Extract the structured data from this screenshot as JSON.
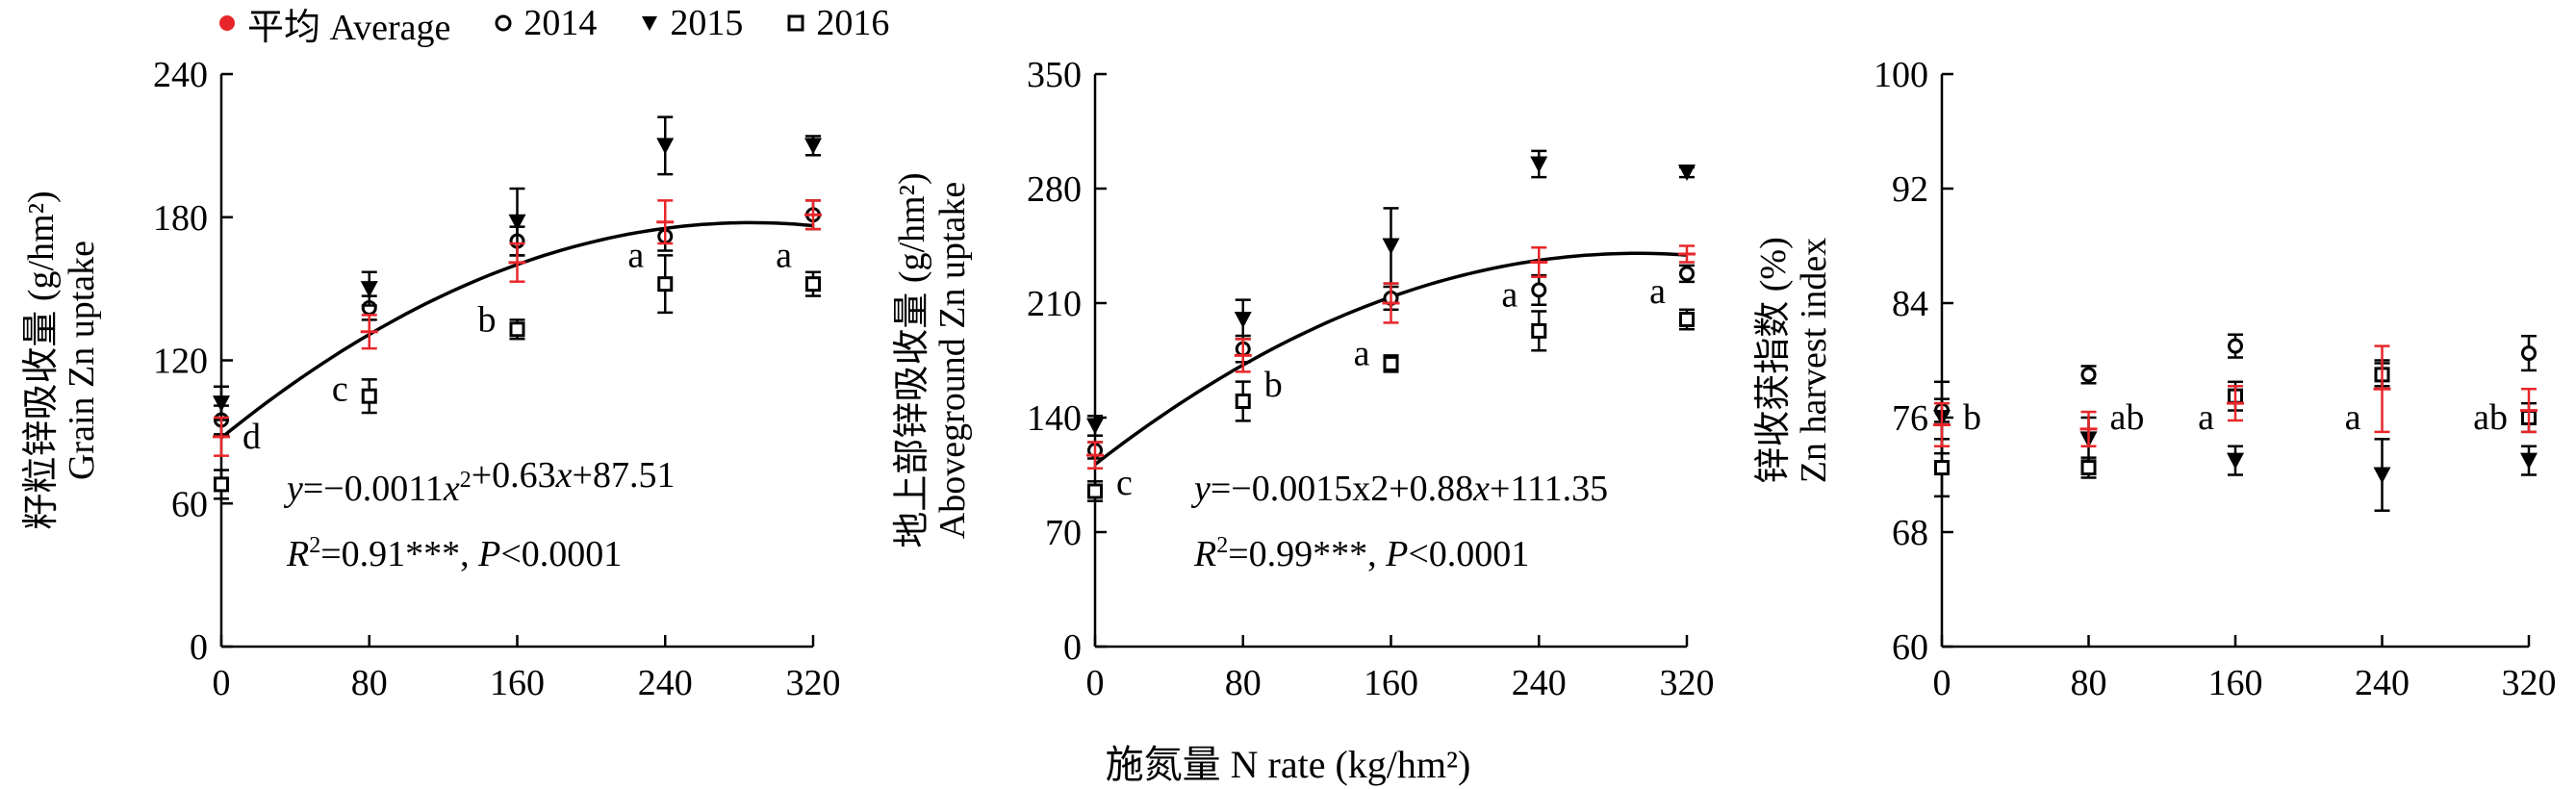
{
  "legend": {
    "average": "平均 Average",
    "y2014": "2014",
    "y2015": "2015",
    "y2016": "2016"
  },
  "colors": {
    "average": "#e8262a",
    "series": "#000000",
    "axis": "#000000"
  },
  "x_axis_title": "施氮量 N rate (kg/hm²)",
  "chart_data": [
    {
      "type": "scatter",
      "ylabel_cn": "籽粒锌吸收量 (g/hm²)",
      "ylabel_en": "Grain Zn uptake",
      "xlim": [
        0,
        320
      ],
      "ylim": [
        0,
        240
      ],
      "yticks": [
        0,
        60,
        120,
        180,
        240
      ],
      "xticks": [
        0,
        80,
        160,
        240,
        320
      ],
      "x": [
        0,
        80,
        160,
        240,
        320
      ],
      "series": [
        {
          "name": "2014",
          "marker": "circle",
          "values": [
            95,
            142,
            170,
            172,
            181
          ],
          "err": [
            6,
            5,
            6,
            6,
            6
          ]
        },
        {
          "name": "2015",
          "marker": "triangle",
          "values": [
            102,
            150,
            178,
            210,
            210
          ],
          "err": [
            7,
            7,
            14,
            12,
            4
          ]
        },
        {
          "name": "2016",
          "marker": "square",
          "values": [
            68,
            105,
            133,
            152,
            152
          ],
          "err": [
            6,
            7,
            4,
            12,
            5
          ]
        },
        {
          "name": "平均 Average",
          "marker": "average",
          "values": [
            88,
            132,
            161,
            178,
            181
          ],
          "err": [
            8,
            7,
            8,
            9,
            6
          ]
        }
      ],
      "letters": [
        {
          "x": 0,
          "y": 88,
          "text": "d",
          "side": "right"
        },
        {
          "x": 80,
          "y": 108,
          "text": "c",
          "side": "left"
        },
        {
          "x": 160,
          "y": 137,
          "text": "b",
          "side": "left"
        },
        {
          "x": 240,
          "y": 164,
          "text": "a",
          "side": "left"
        },
        {
          "x": 320,
          "y": 164,
          "text": "a",
          "side": "left"
        }
      ],
      "fit": {
        "a": -0.0011,
        "b": 0.63,
        "c": 87.51
      },
      "equation_parts": [
        "y",
        "=−0.0011",
        "x",
        "2",
        "+0.63",
        "x",
        "+87.51"
      ],
      "r2_parts": [
        "R",
        "2",
        "=0.91***, ",
        "P",
        "<0.0001"
      ]
    },
    {
      "type": "scatter",
      "ylabel_cn": "地上部锌吸收量 (g/hm²)",
      "ylabel_en": "Aboveground Zn uptake",
      "xlim": [
        0,
        320
      ],
      "ylim": [
        0,
        350
      ],
      "yticks": [
        0,
        70,
        140,
        210,
        280,
        350
      ],
      "xticks": [
        0,
        80,
        160,
        240,
        320
      ],
      "x": [
        0,
        80,
        160,
        240,
        320
      ],
      "series": [
        {
          "name": "2014",
          "marker": "circle",
          "values": [
            120,
            182,
            213,
            218,
            228
          ],
          "err": [
            5,
            8,
            7,
            9,
            5
          ]
        },
        {
          "name": "2015",
          "marker": "triangle",
          "values": [
            135,
            200,
            245,
            295,
            290
          ],
          "err": [
            6,
            12,
            23,
            8,
            3
          ]
        },
        {
          "name": "2016",
          "marker": "square",
          "values": [
            95,
            150,
            173,
            193,
            200
          ],
          "err": [
            6,
            12,
            5,
            12,
            6
          ]
        },
        {
          "name": "平均 Average",
          "marker": "average",
          "values": [
            117,
            178,
            210,
            235,
            240
          ],
          "err": [
            8,
            10,
            12,
            9,
            5
          ]
        }
      ],
      "letters": [
        {
          "x": 0,
          "y": 100,
          "text": "c",
          "side": "right"
        },
        {
          "x": 80,
          "y": 160,
          "text": "b",
          "side": "right"
        },
        {
          "x": 160,
          "y": 179,
          "text": "a",
          "side": "left"
        },
        {
          "x": 240,
          "y": 215,
          "text": "a",
          "side": "left"
        },
        {
          "x": 320,
          "y": 217,
          "text": "a",
          "side": "left"
        }
      ],
      "fit": {
        "a": -0.0015,
        "b": 0.88,
        "c": 111.35
      },
      "equation_parts": [
        "y",
        "=−0.0015x2+0.88",
        "x",
        "",
        "+111.35",
        "",
        ""
      ],
      "r2_parts": [
        "R",
        "2",
        "=0.99***, ",
        "P",
        "<0.0001"
      ]
    },
    {
      "type": "scatter",
      "ylabel_cn": "锌收获指数 (%)",
      "ylabel_en": "Zn harvest index",
      "xlim": [
        0,
        320
      ],
      "ylim": [
        60,
        100
      ],
      "yticks": [
        60,
        68,
        76,
        84,
        92,
        100
      ],
      "xticks": [
        0,
        80,
        160,
        240,
        320
      ],
      "x": [
        0,
        80,
        160,
        240,
        320
      ],
      "series": [
        {
          "name": "2014",
          "marker": "circle",
          "values": [
            76.5,
            79,
            81,
            79,
            80.5
          ],
          "err": [
            0.8,
            0.6,
            0.8,
            0.8,
            1.2
          ]
        },
        {
          "name": "2015",
          "marker": "triangle",
          "values": [
            76,
            74.5,
            73,
            72,
            73
          ],
          "err": [
            2.5,
            1.5,
            1,
            2.5,
            1
          ]
        },
        {
          "name": "2016",
          "marker": "square",
          "values": [
            72.5,
            72.5,
            77.5,
            79,
            76
          ],
          "err": [
            2,
            0.7,
            1,
            1,
            1
          ]
        },
        {
          "name": "平均 Average",
          "marker": "average",
          "values": [
            75.5,
            75.2,
            77,
            78,
            76.5
          ],
          "err": [
            1.5,
            1.2,
            1.2,
            3,
            1.5
          ]
        }
      ],
      "letters": [
        {
          "x": 0,
          "y": 76,
          "text": "b",
          "side": "right"
        },
        {
          "x": 80,
          "y": 76,
          "text": "ab",
          "side": "right"
        },
        {
          "x": 160,
          "y": 76,
          "text": "a",
          "side": "left"
        },
        {
          "x": 240,
          "y": 76,
          "text": "a",
          "side": "left"
        },
        {
          "x": 320,
          "y": 76,
          "text": "ab",
          "side": "left"
        }
      ]
    }
  ]
}
